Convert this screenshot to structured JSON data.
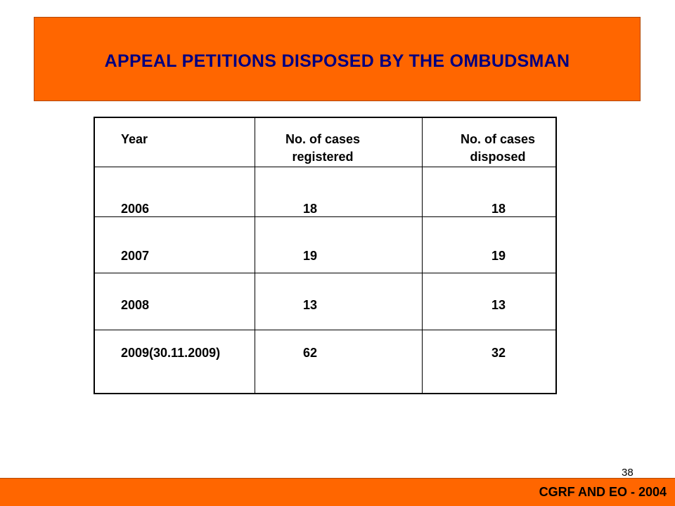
{
  "title": "APPEAL PETITIONS DISPOSED BY THE OMBUDSMAN",
  "table": {
    "headers": {
      "year": "Year",
      "registered_line1": "No. of cases",
      "registered_line2": "registered",
      "disposed_line1": "No. of cases",
      "disposed_line2": "disposed"
    },
    "rows": [
      {
        "year": "2006",
        "registered": "18",
        "disposed": "18"
      },
      {
        "year": "2007",
        "registered": "19",
        "disposed": "19"
      },
      {
        "year": "2008",
        "registered": "13",
        "disposed": "13"
      },
      {
        "year": "2009(30.11.2009)",
        "registered": "62",
        "disposed": "32"
      }
    ]
  },
  "page_number": "38",
  "footer": "CGRF AND EO - 2004",
  "colors": {
    "banner": "#ff6600",
    "title_text": "#000080"
  }
}
